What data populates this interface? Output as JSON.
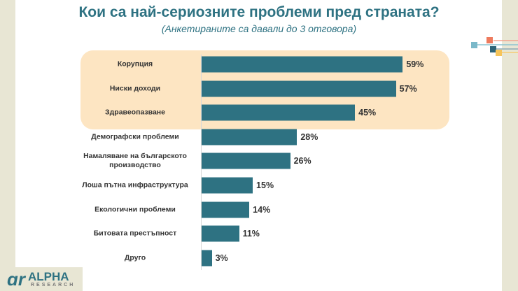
{
  "title": "Кои са най-сериозните проблеми пред страната?",
  "subtitle": "(Анкетираните са давали до 3 отговора)",
  "logo": {
    "text": "ALPHA RESEARCH",
    "mark": "αr"
  },
  "colors": {
    "bar": "#2e7282",
    "highlight": "#fde5c2",
    "title": "#2e7282"
  },
  "chart_data": {
    "type": "bar",
    "orientation": "horizontal",
    "title": "Кои са най-сериозните проблеми пред страната?",
    "subtitle": "(Анкетираните са давали до 3 отговора)",
    "categories": [
      "Корупция",
      "Ниски доходи",
      "Здравеопазване",
      "Демографски проблеми",
      "Намаляване на българското производство",
      "Лоша пътна инфраструктура",
      "Екологични проблеми",
      "Битовата престъпност",
      "Друго"
    ],
    "values": [
      59,
      57,
      45,
      28,
      26,
      15,
      14,
      11,
      3
    ],
    "labels": [
      "59%",
      "57%",
      "45%",
      "28%",
      "26%",
      "15%",
      "14%",
      "11%",
      "3%"
    ],
    "highlighted": [
      "Корупция",
      "Ниски доходи",
      "Здравеопазване"
    ],
    "xlim": [
      0,
      100
    ],
    "grid": false
  }
}
